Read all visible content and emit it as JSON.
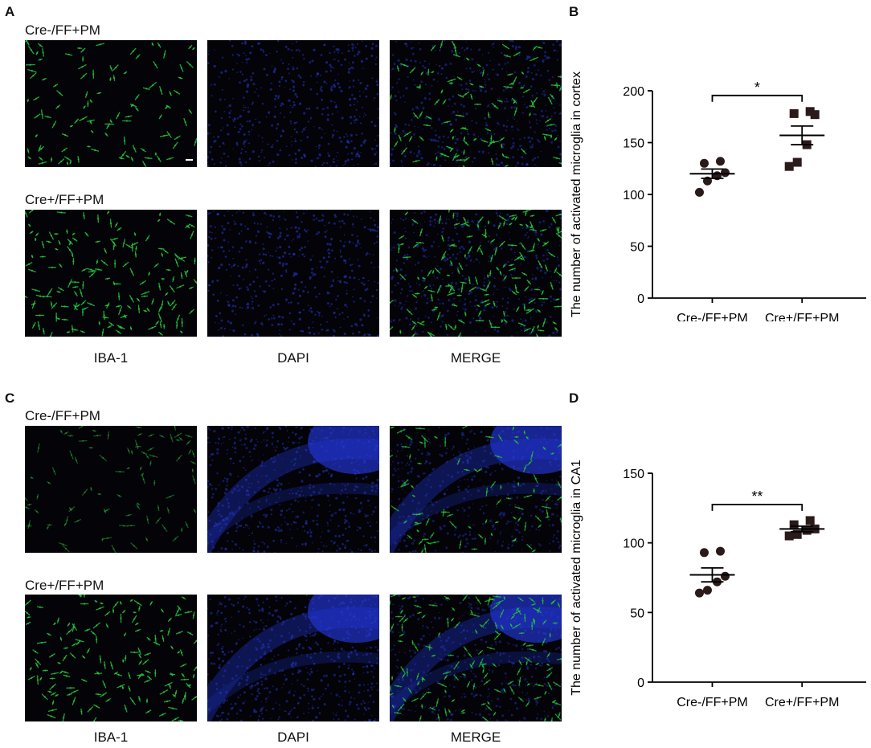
{
  "panels": {
    "A": {
      "letter": "A",
      "rows": [
        {
          "label": "Cre-/FF+PM",
          "scale_bar": true
        },
        {
          "label": "Cre+/FF+PM",
          "scale_bar": false
        }
      ],
      "columns": [
        "IBA-1",
        "DAPI",
        "MERGE"
      ]
    },
    "B": {
      "letter": "B"
    },
    "C": {
      "letter": "C",
      "rows": [
        {
          "label": "Cre-/FF+PM"
        },
        {
          "label": "Cre+/FF+PM"
        }
      ],
      "columns": [
        "IBA-1",
        "DAPI",
        "MERGE"
      ]
    },
    "D": {
      "letter": "D"
    }
  },
  "colors": {
    "iba1": "#22c43a",
    "dapi": "#2a3bd6",
    "background": "#030308",
    "marker": "#2b1a1a",
    "axis": "#000000"
  },
  "chart_data": [
    {
      "panel": "B",
      "type": "scatter",
      "ylabel": "The number of activated microglia in cortex",
      "xlabel": "",
      "categories": [
        "Cre-/FF+PM",
        "Cre+/FF+PM"
      ],
      "ylim": [
        0,
        200
      ],
      "yticks": [
        0,
        50,
        100,
        150,
        200
      ],
      "series": [
        {
          "category": "Cre-/FF+PM",
          "marker": "circle",
          "values": [
            102,
            113,
            118,
            121,
            130,
            132
          ],
          "mean": 120,
          "sem": 4.5
        },
        {
          "category": "Cre+/FF+PM",
          "marker": "square",
          "values": [
            127,
            131,
            148,
            177,
            178,
            180
          ],
          "mean": 157,
          "sem": 9
        }
      ],
      "significance": "*"
    },
    {
      "panel": "D",
      "type": "scatter",
      "ylabel": "The number of activated microglia in CA1",
      "xlabel": "",
      "categories": [
        "Cre-/FF+PM",
        "Cre+/FF+PM"
      ],
      "ylim": [
        0,
        150
      ],
      "yticks": [
        0,
        50,
        100,
        150
      ],
      "series": [
        {
          "category": "Cre-/FF+PM",
          "marker": "circle",
          "values": [
            64,
            66,
            72,
            76,
            93,
            94
          ],
          "mean": 77,
          "sem": 5
        },
        {
          "category": "Cre+/FF+PM",
          "marker": "square",
          "values": [
            105,
            106,
            109,
            110,
            113,
            116
          ],
          "mean": 110,
          "sem": 2
        }
      ],
      "significance": "**"
    }
  ]
}
